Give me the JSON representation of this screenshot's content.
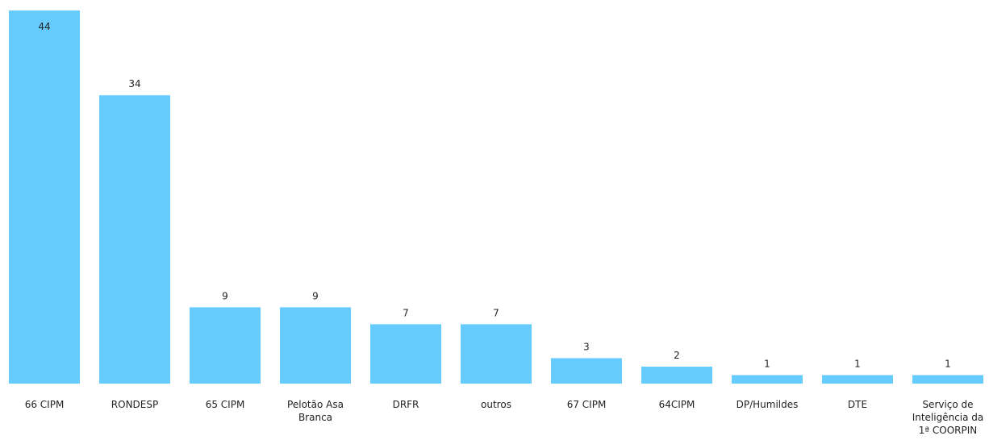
{
  "chart_data": {
    "type": "bar",
    "categories": [
      "66 CIPM",
      "RONDESP",
      "65 CIPM",
      "Pelotão Asa Branca",
      "DRFR",
      "outros",
      "67 CIPM",
      "64CIPM",
      "DP/Humildes",
      "DTE",
      "Serviço de Inteligência da 1ª COORPIN"
    ],
    "values": [
      44,
      34,
      9,
      9,
      7,
      7,
      3,
      2,
      1,
      1,
      1
    ],
    "data_labels": [
      "44",
      "34",
      "9",
      "9",
      "7",
      "7",
      "3",
      "2",
      "1",
      "1",
      "1"
    ],
    "title": "",
    "xlabel": "",
    "ylabel": "",
    "ylim": [
      0,
      44
    ],
    "grid": false,
    "legend": "none",
    "bar_color": "#66ccff"
  }
}
